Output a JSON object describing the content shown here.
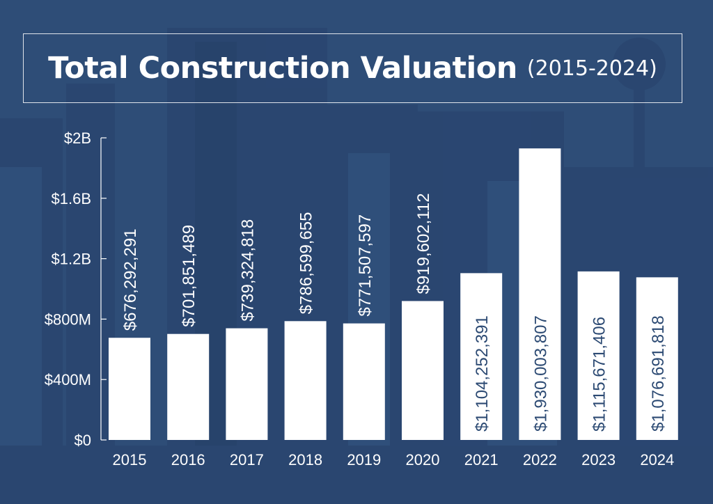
{
  "colors": {
    "background": "#2c4a73",
    "bar": "#ffffff",
    "text": "#ffffff",
    "inside_label": "#2c4a73"
  },
  "chart_data": {
    "type": "bar",
    "title": "Total Construction Valuation",
    "subtitle": "(2015-2024)",
    "xlabel": "",
    "ylabel": "",
    "ylim": [
      0,
      2000000000
    ],
    "yticks": [
      {
        "value": 0,
        "label": "$0"
      },
      {
        "value": 400000000,
        "label": "$400M"
      },
      {
        "value": 800000000,
        "label": "$800M"
      },
      {
        "value": 1200000000,
        "label": "$1.2B"
      },
      {
        "value": 1600000000,
        "label": "$1.6B"
      },
      {
        "value": 2000000000,
        "label": "$2B"
      }
    ],
    "grid": false,
    "categories": [
      "2015",
      "2016",
      "2017",
      "2018",
      "2019",
      "2020",
      "2021",
      "2022",
      "2023",
      "2024"
    ],
    "values": [
      676292291,
      701851489,
      739324818,
      786599655,
      771507597,
      919602112,
      1104252391,
      1930003807,
      1115671406,
      1076691818
    ],
    "data_labels": [
      "$676,292,291",
      "$701,851,489",
      "$739,324,818",
      "$786,599,655",
      "$771,507,597",
      "$919,602,112",
      "$1,104,252,391",
      "$1,930,003,807",
      "$1,115,671,406",
      "$1,076,691,818"
    ]
  }
}
